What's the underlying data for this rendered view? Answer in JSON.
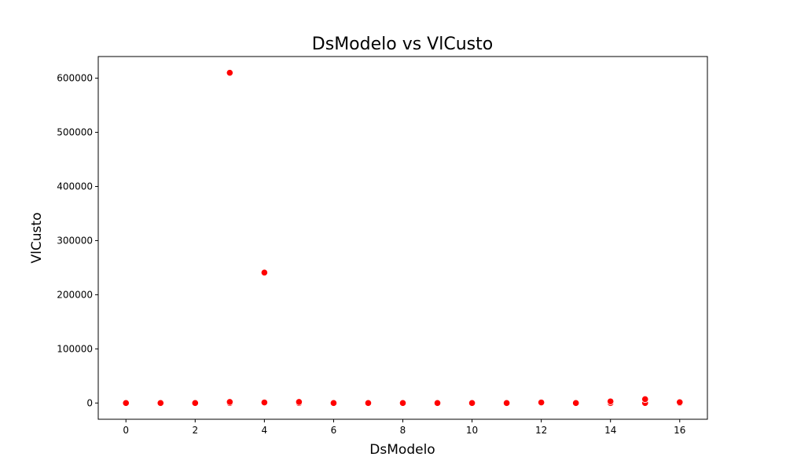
{
  "chart_data": {
    "type": "scatter",
    "title": "DsModelo vs VlCusto",
    "xlabel": "DsModelo",
    "ylabel": "VlCusto",
    "xlim": [
      -0.8,
      16.8
    ],
    "ylim": [
      -30000,
      640000
    ],
    "x_ticks": [
      0,
      2,
      4,
      6,
      8,
      10,
      12,
      14,
      16
    ],
    "y_ticks": [
      0,
      100000,
      200000,
      300000,
      400000,
      500000,
      600000
    ],
    "grid": false,
    "marker_color": "#ff0000",
    "marker_edge_color": "#ffffff",
    "points": [
      {
        "x": 0,
        "y": 0
      },
      {
        "x": 1,
        "y": 0
      },
      {
        "x": 2,
        "y": 0
      },
      {
        "x": 3,
        "y": 0
      },
      {
        "x": 3,
        "y": 2000
      },
      {
        "x": 3,
        "y": 610000
      },
      {
        "x": 4,
        "y": 0
      },
      {
        "x": 4,
        "y": 1000
      },
      {
        "x": 4,
        "y": 241000
      },
      {
        "x": 5,
        "y": 0
      },
      {
        "x": 5,
        "y": 2000
      },
      {
        "x": 6,
        "y": 0
      },
      {
        "x": 7,
        "y": 0
      },
      {
        "x": 8,
        "y": 0
      },
      {
        "x": 9,
        "y": 0
      },
      {
        "x": 10,
        "y": 0
      },
      {
        "x": 11,
        "y": 0
      },
      {
        "x": 12,
        "y": 0
      },
      {
        "x": 12,
        "y": 1000
      },
      {
        "x": 13,
        "y": 0
      },
      {
        "x": 14,
        "y": 0
      },
      {
        "x": 14,
        "y": 3000
      },
      {
        "x": 15,
        "y": 0
      },
      {
        "x": 15,
        "y": 7000
      },
      {
        "x": 16,
        "y": 0
      },
      {
        "x": 16,
        "y": 1500
      }
    ]
  }
}
